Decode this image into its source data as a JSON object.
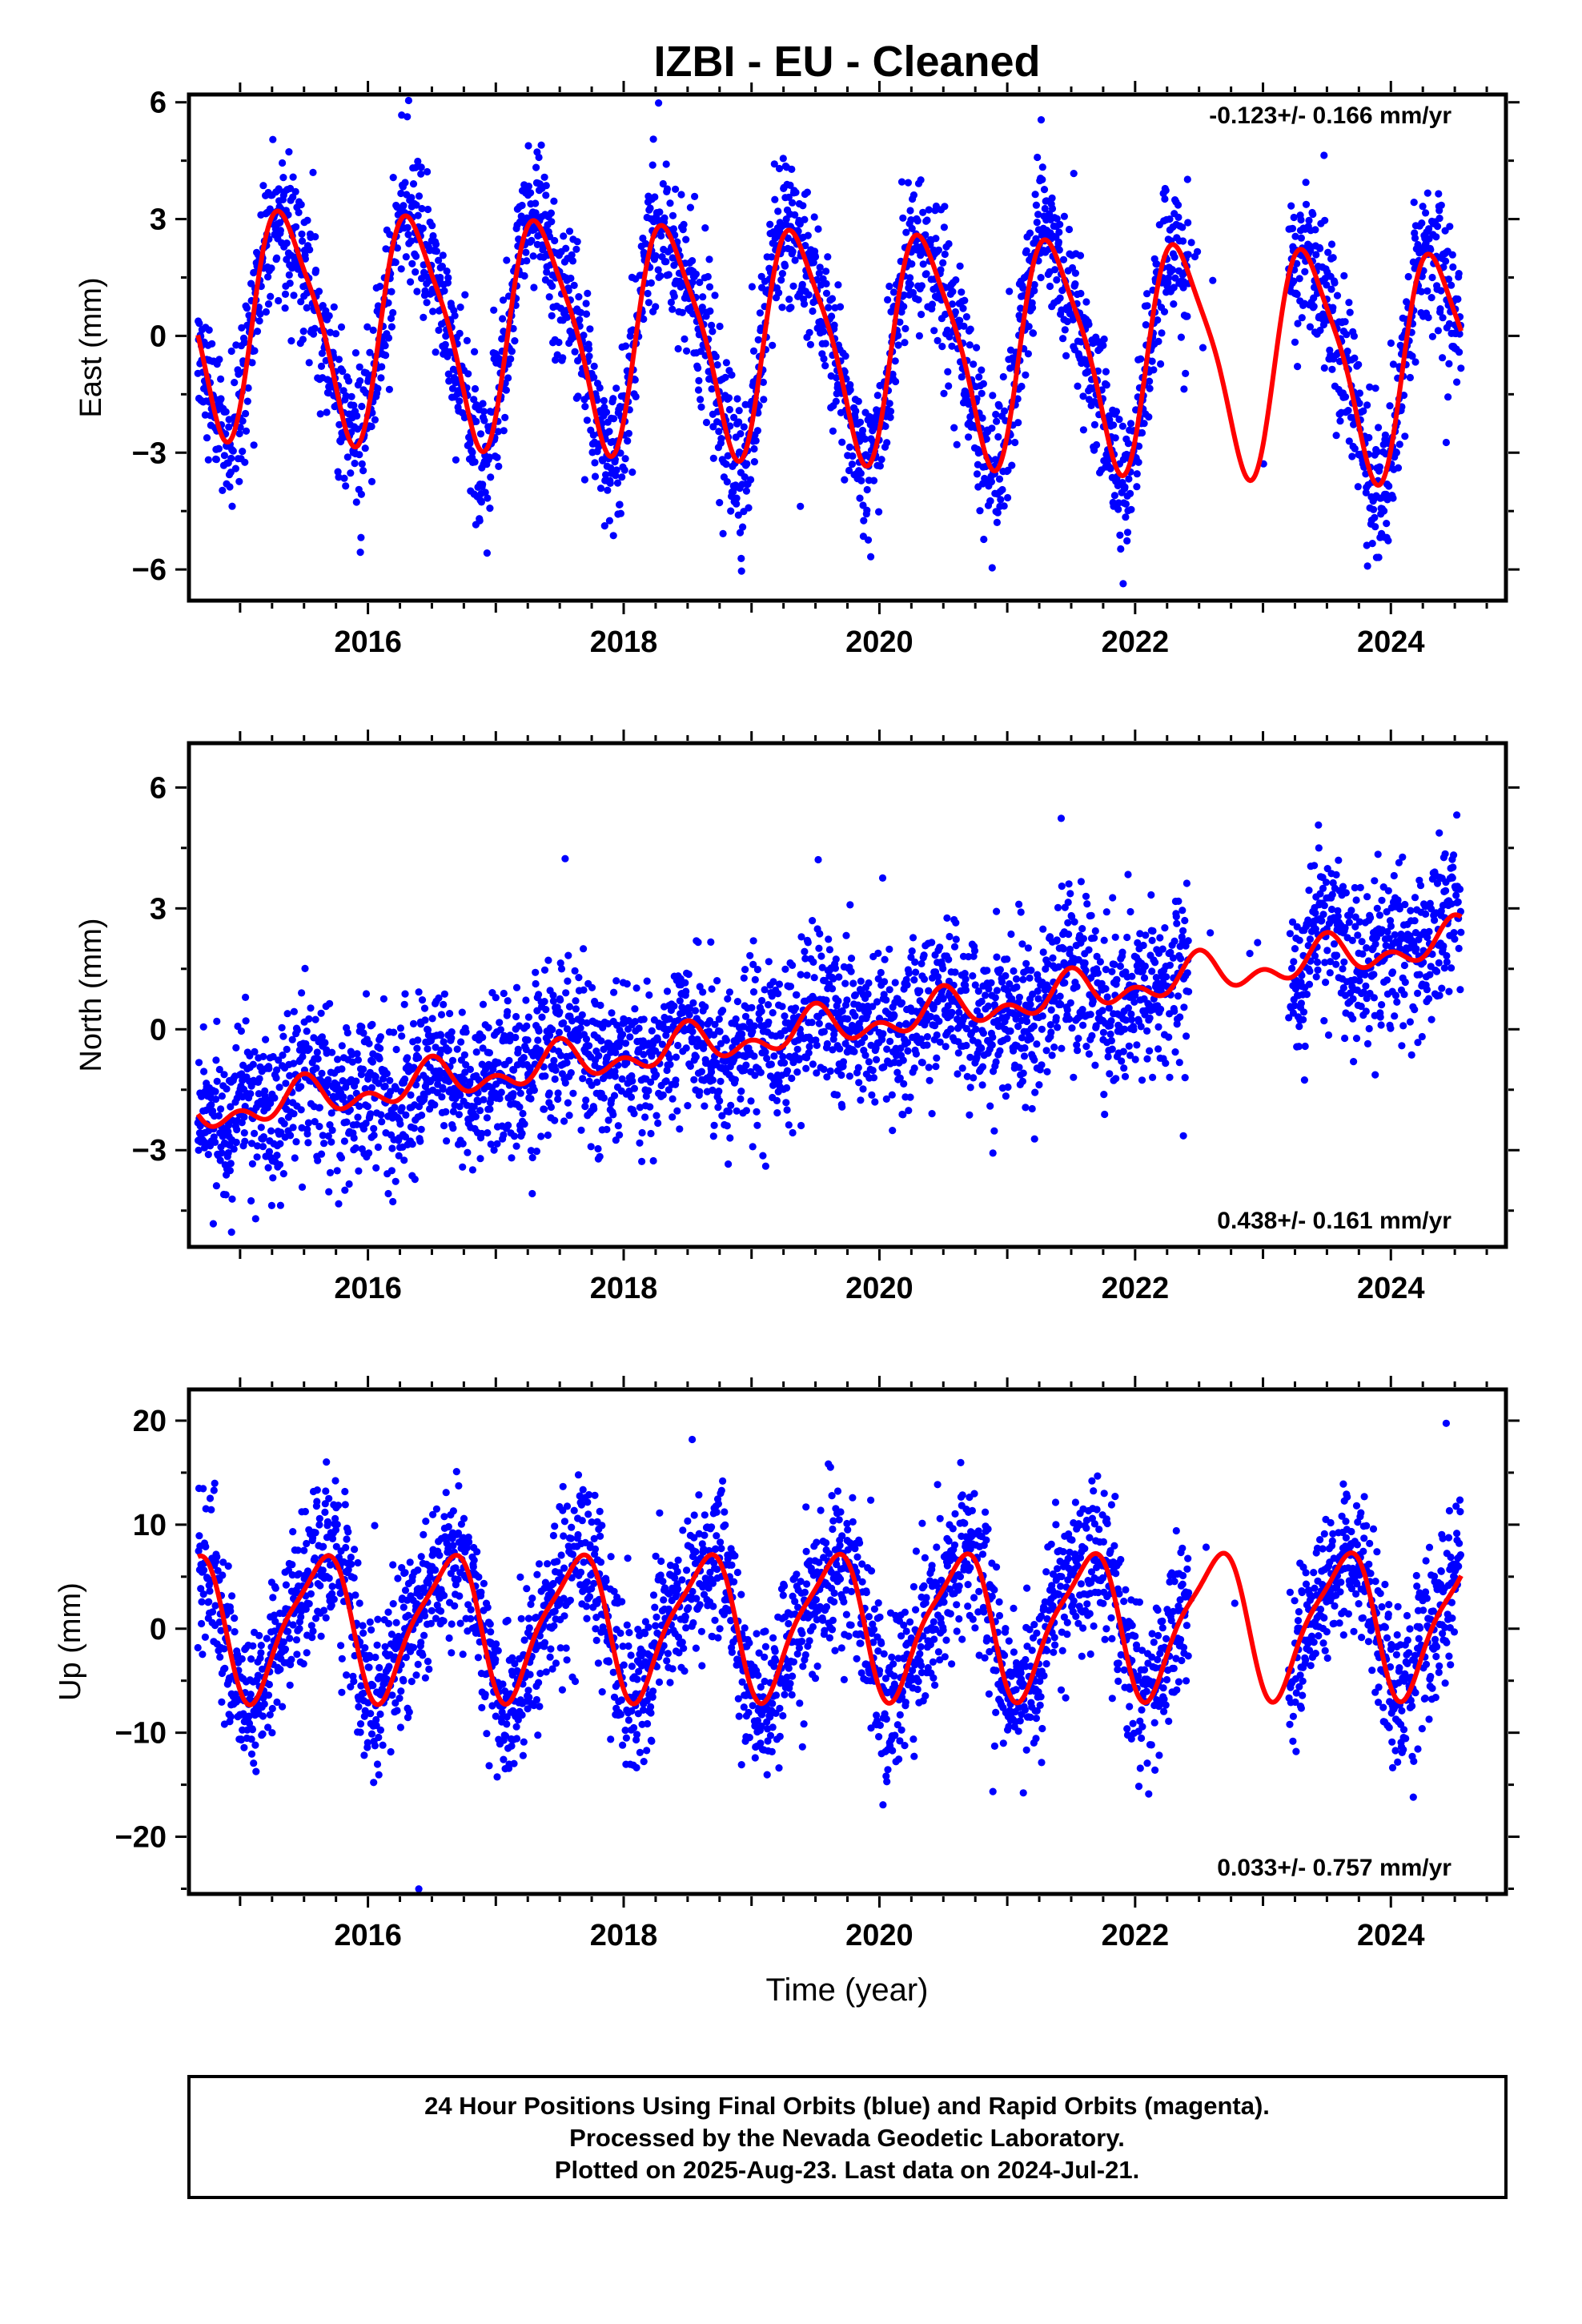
{
  "chart_data": {
    "title": "IZBI  - EU - Cleaned",
    "type": "scatter",
    "xlabel": "Time (year)",
    "xlim": [
      2014.6,
      2024.9
    ],
    "xticks": [
      2016,
      2018,
      2020,
      2022,
      2024
    ],
    "xtick_labels": [
      "2016",
      "2018",
      "2020",
      "2022",
      "2024"
    ],
    "data_span": [
      2014.67,
      2024.55
    ],
    "gaps": [
      [
        2022.42,
        2023.2
      ]
    ],
    "colors": {
      "data": "#0000ff",
      "model": "#ff0000"
    },
    "panels": [
      {
        "component": "East",
        "ylabel": "East (mm)",
        "ylim": [
          -6.8,
          6.2
        ],
        "yticks": [
          6,
          3,
          0,
          -3,
          -6
        ],
        "ytick_labels": [
          "6",
          "3",
          "0",
          "−3",
          "−6"
        ],
        "rate": "-0.123+/- 0.166 mm/yr",
        "rate_position": "top-right",
        "model": {
          "offset": -0.1,
          "trend": -0.123,
          "annual_amp": 2.8,
          "annual_phase_year_fraction": 0.36,
          "semiannual_amp": 0.6,
          "semiannual_phase_year_fraction": 0.2
        },
        "noise_sd": 0.95
      },
      {
        "component": "North",
        "ylabel": "North (mm)",
        "ylim": [
          -5.4,
          7.1
        ],
        "yticks": [
          6,
          3,
          0,
          -3
        ],
        "ytick_labels": [
          "6",
          "3",
          "0",
          "−3"
        ],
        "rate": "0.438+/- 0.161 mm/yr",
        "rate_position": "bottom-right",
        "model": {
          "offset": 0.0,
          "trend": 0.438,
          "annual_amp": 0.35,
          "annual_phase_year_fraction": 0.5,
          "semiannual_amp": 0.3,
          "semiannual_phase_year_fraction": 0.0
        },
        "noise_sd": 1.0
      },
      {
        "component": "Up",
        "ylabel": "Up (mm)",
        "ylim": [
          -25.5,
          23
        ],
        "yticks": [
          20,
          10,
          0,
          -10,
          -20
        ],
        "ytick_labels": [
          "20",
          "10",
          "0",
          "−10",
          "−20"
        ],
        "rate": "0.033+/- 0.757 mm/yr",
        "rate_position": "bottom-right",
        "model": {
          "offset": 0.5,
          "trend": 0.033,
          "annual_amp": 6.6,
          "annual_phase_year_fraction": 0.62,
          "semiannual_amp": 1.6,
          "semiannual_phase_year_fraction": 0.28
        },
        "noise_sd": 3.8
      }
    ]
  },
  "footer": {
    "line1": "24 Hour Positions Using Final Orbits (blue) and Rapid Orbits (magenta).",
    "line2": "Processed by the Nevada Geodetic Laboratory.",
    "line3": "Plotted on 2025-Aug-23. Last data on 2024-Jul-21."
  }
}
